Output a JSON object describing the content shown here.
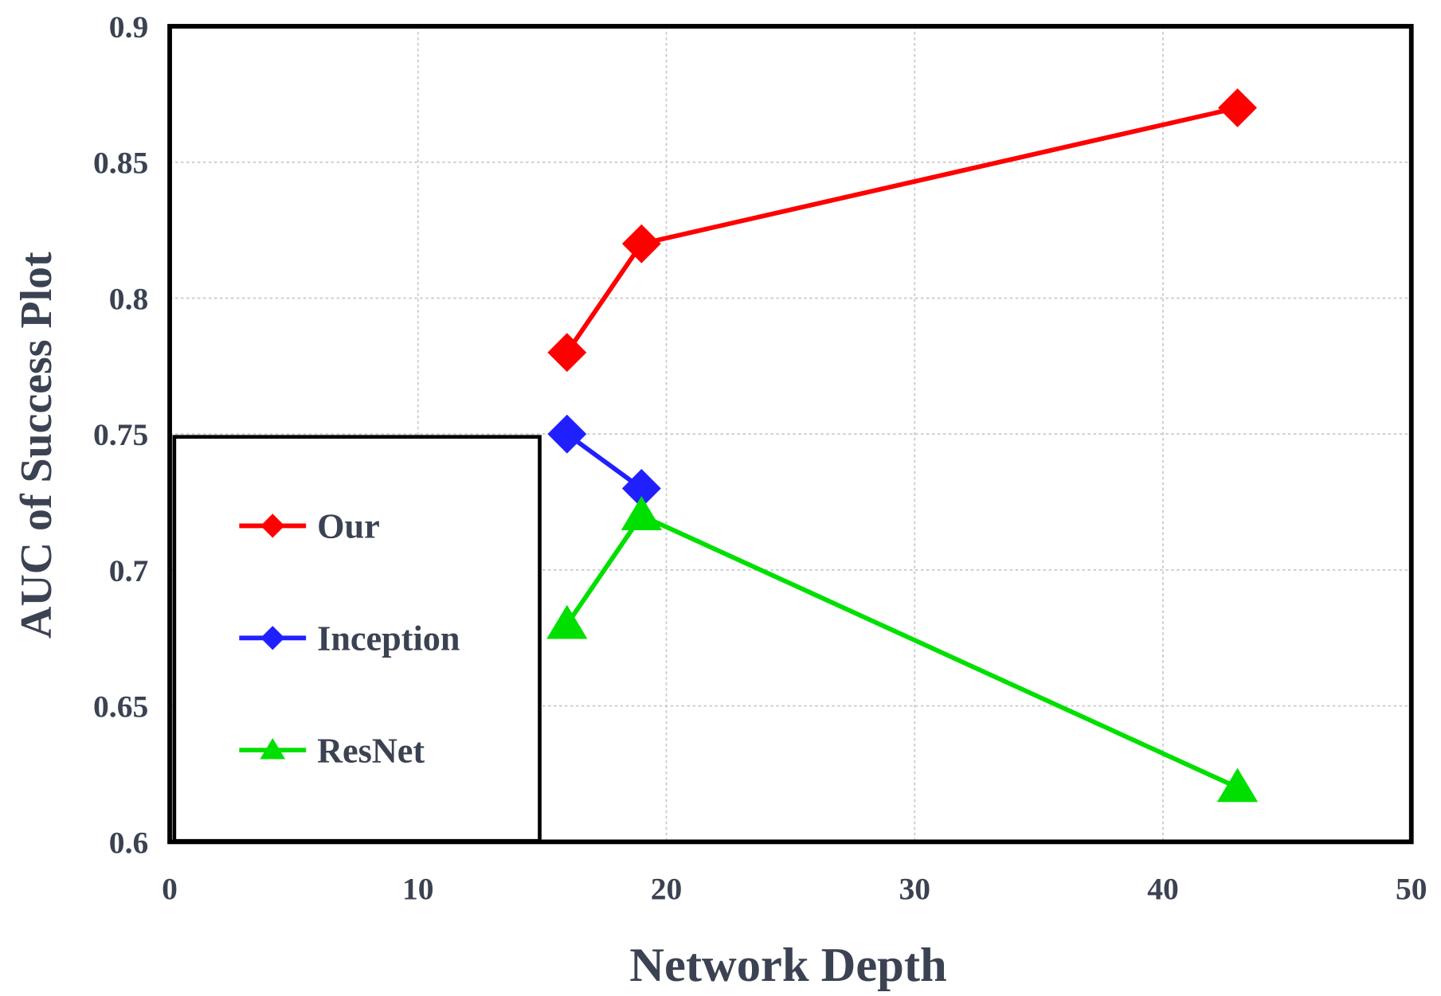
{
  "chart_data": {
    "type": "line",
    "xlabel": "Network Depth",
    "ylabel": "AUC of Success Plot",
    "xlim": [
      0,
      50
    ],
    "xticks": [
      0,
      10,
      20,
      30,
      40,
      50
    ],
    "ylim": [
      0.6,
      0.9
    ],
    "yticks": [
      0.6,
      0.65,
      0.7,
      0.75,
      0.8,
      0.85,
      0.9
    ],
    "grid": true,
    "legend": "lower left",
    "series": [
      {
        "name": "Our",
        "color": "#ff0000",
        "marker": "diamond",
        "x": [
          16,
          19,
          43
        ],
        "values": [
          0.78,
          0.82,
          0.87
        ]
      },
      {
        "name": "Inception",
        "color": "#2020ff",
        "marker": "diamond",
        "x": [
          16,
          19
        ],
        "values": [
          0.75,
          0.73
        ]
      },
      {
        "name": "ResNet",
        "color": "#00e000",
        "marker": "triangle",
        "x": [
          16,
          19,
          43
        ],
        "values": [
          0.68,
          0.72,
          0.62
        ]
      }
    ]
  }
}
